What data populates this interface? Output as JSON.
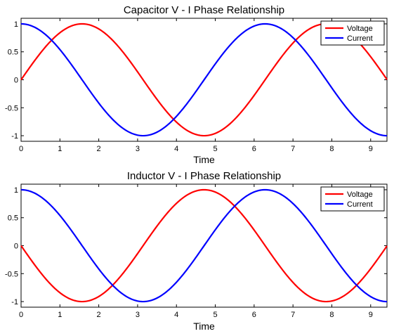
{
  "chart_data": [
    {
      "type": "line",
      "title": "Capacitor V - I Phase Relationship",
      "xlabel": "Time",
      "ylabel": "",
      "xlim": [
        0,
        9.42
      ],
      "ylim": [
        -1.1,
        1.1
      ],
      "xticks": [
        0,
        1,
        2,
        3,
        4,
        5,
        6,
        7,
        8,
        9
      ],
      "yticks": [
        1,
        0.5,
        0,
        -0.5,
        -1
      ],
      "ytick_labels": [
        "1",
        "0.5",
        "0",
        "-0.5",
        "-1"
      ],
      "grid": false,
      "legend": "top-right",
      "series": [
        {
          "name": "Voltage",
          "color": "#ff0000",
          "function": "sin",
          "x": [
            0,
            1.571,
            3.142,
            4.712,
            6.283,
            7.854,
            9.42
          ],
          "y": [
            0,
            1,
            0,
            -1,
            0,
            1,
            0
          ]
        },
        {
          "name": "Current",
          "color": "#0000ff",
          "function": "cos",
          "x": [
            0,
            1.571,
            3.142,
            4.712,
            6.283,
            7.854,
            9.42
          ],
          "y": [
            1,
            0,
            -1,
            0,
            1,
            0,
            -1
          ]
        }
      ]
    },
    {
      "type": "line",
      "title": "Inductor V - I Phase Relationship",
      "xlabel": "Time",
      "ylabel": "",
      "xlim": [
        0,
        9.42
      ],
      "ylim": [
        -1.1,
        1.1
      ],
      "xticks": [
        0,
        1,
        2,
        3,
        4,
        5,
        6,
        7,
        8,
        9
      ],
      "yticks": [
        1,
        0.5,
        0,
        -0.5,
        -1
      ],
      "ytick_labels": [
        "1",
        "0.5",
        "0",
        "-0.5",
        "-1"
      ],
      "grid": false,
      "legend": "top-right",
      "series": [
        {
          "name": "Voltage",
          "color": "#ff0000",
          "function": "-sin",
          "x": [
            0,
            1.571,
            3.142,
            4.712,
            6.283,
            7.854,
            9.42
          ],
          "y": [
            0,
            -1,
            0,
            1,
            0,
            -1,
            0
          ]
        },
        {
          "name": "Current",
          "color": "#0000ff",
          "function": "cos",
          "x": [
            0,
            1.571,
            3.142,
            4.712,
            6.283,
            7.854,
            9.42
          ],
          "y": [
            1,
            0,
            -1,
            0,
            1,
            0,
            -1
          ]
        }
      ]
    }
  ]
}
